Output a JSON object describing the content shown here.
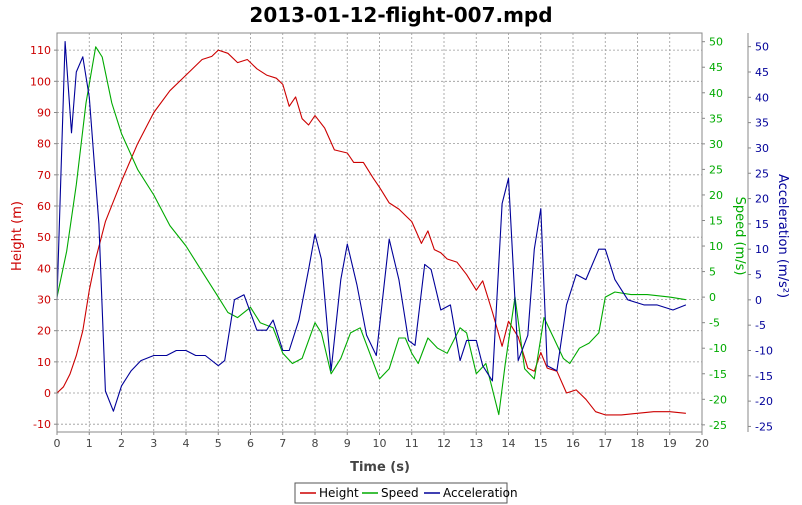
{
  "chart_data": {
    "type": "line",
    "title": "2013-01-12-flight-007.mpd",
    "xlabel": "Time (s)",
    "xlim": [
      0,
      20
    ],
    "xticks": [
      0,
      1,
      2,
      3,
      4,
      5,
      6,
      7,
      8,
      9,
      10,
      11,
      12,
      13,
      14,
      15,
      16,
      17,
      18,
      19,
      20
    ],
    "grid": true,
    "legend_position": "bottom-center",
    "axes": {
      "left": {
        "label": "Height (m)",
        "color": "#cc0000",
        "ylim": [
          -12.5,
          115.5
        ],
        "ticks": [
          -10,
          0,
          10,
          20,
          30,
          40,
          50,
          60,
          70,
          80,
          90,
          100,
          110
        ]
      },
      "right1": {
        "label": "Speed (m/s)",
        "color": "#00aa00",
        "ylim": [
          -26.4,
          51.7
        ],
        "ticks": [
          -25,
          -20,
          -15,
          -10,
          -5,
          0,
          5,
          10,
          15,
          20,
          25,
          30,
          35,
          40,
          45,
          50
        ]
      },
      "right2": {
        "label": "Acceleration (m/s²)",
        "color": "#000099",
        "ylim": [
          -26.1,
          52.7
        ],
        "ticks": [
          -25,
          -20,
          -15,
          -10,
          -5,
          0,
          5,
          10,
          15,
          20,
          25,
          30,
          35,
          40,
          45,
          50
        ]
      }
    },
    "series": [
      {
        "name": "Height",
        "axis": "left",
        "color": "#cc0000",
        "points": [
          [
            0,
            0
          ],
          [
            0.2,
            2
          ],
          [
            0.4,
            6
          ],
          [
            0.6,
            12
          ],
          [
            0.8,
            20
          ],
          [
            1.0,
            33
          ],
          [
            1.2,
            43
          ],
          [
            1.5,
            55
          ],
          [
            2.0,
            68
          ],
          [
            2.5,
            80
          ],
          [
            3.0,
            90
          ],
          [
            3.5,
            97
          ],
          [
            4.0,
            102
          ],
          [
            4.5,
            107
          ],
          [
            4.8,
            108
          ],
          [
            5.0,
            110
          ],
          [
            5.3,
            109
          ],
          [
            5.6,
            106
          ],
          [
            5.9,
            107
          ],
          [
            6.2,
            104
          ],
          [
            6.5,
            102
          ],
          [
            6.8,
            101
          ],
          [
            7.0,
            99
          ],
          [
            7.2,
            92
          ],
          [
            7.4,
            95
          ],
          [
            7.6,
            88
          ],
          [
            7.8,
            86
          ],
          [
            8.0,
            89
          ],
          [
            8.3,
            85
          ],
          [
            8.6,
            78
          ],
          [
            9.0,
            77
          ],
          [
            9.2,
            74
          ],
          [
            9.5,
            74
          ],
          [
            9.8,
            69
          ],
          [
            10.0,
            66
          ],
          [
            10.3,
            61
          ],
          [
            10.6,
            59
          ],
          [
            10.8,
            57
          ],
          [
            11.0,
            55
          ],
          [
            11.3,
            48
          ],
          [
            11.5,
            52
          ],
          [
            11.7,
            46
          ],
          [
            11.9,
            45
          ],
          [
            12.1,
            43
          ],
          [
            12.4,
            42
          ],
          [
            12.7,
            38
          ],
          [
            13.0,
            33
          ],
          [
            13.2,
            36
          ],
          [
            13.5,
            26
          ],
          [
            13.8,
            15
          ],
          [
            14.0,
            23
          ],
          [
            14.3,
            18
          ],
          [
            14.6,
            8
          ],
          [
            14.8,
            7
          ],
          [
            15.0,
            13
          ],
          [
            15.2,
            8
          ],
          [
            15.5,
            7
          ],
          [
            15.8,
            0
          ],
          [
            16.1,
            1
          ],
          [
            16.4,
            -2
          ],
          [
            16.7,
            -6
          ],
          [
            17.0,
            -7
          ],
          [
            17.5,
            -7
          ],
          [
            18.0,
            -6.5
          ],
          [
            18.5,
            -6
          ],
          [
            19.0,
            -6
          ],
          [
            19.5,
            -6.5
          ]
        ]
      },
      {
        "name": "Speed",
        "axis": "right1",
        "color": "#00aa00",
        "points": [
          [
            0,
            0
          ],
          [
            0.3,
            9
          ],
          [
            0.6,
            22
          ],
          [
            0.9,
            38
          ],
          [
            1.2,
            49
          ],
          [
            1.4,
            47
          ],
          [
            1.7,
            38
          ],
          [
            2.0,
            32
          ],
          [
            2.5,
            25
          ],
          [
            3.0,
            20
          ],
          [
            3.5,
            14
          ],
          [
            4.0,
            10
          ],
          [
            4.5,
            5
          ],
          [
            5.0,
            0
          ],
          [
            5.3,
            -3
          ],
          [
            5.6,
            -4
          ],
          [
            6.0,
            -2
          ],
          [
            6.3,
            -5
          ],
          [
            6.7,
            -6
          ],
          [
            7.0,
            -11
          ],
          [
            7.3,
            -13
          ],
          [
            7.6,
            -12
          ],
          [
            8.0,
            -5
          ],
          [
            8.2,
            -7
          ],
          [
            8.5,
            -15
          ],
          [
            8.8,
            -12
          ],
          [
            9.1,
            -7
          ],
          [
            9.4,
            -6
          ],
          [
            9.7,
            -11
          ],
          [
            10.0,
            -16
          ],
          [
            10.3,
            -14
          ],
          [
            10.6,
            -8
          ],
          [
            10.8,
            -8
          ],
          [
            11.0,
            -11
          ],
          [
            11.2,
            -13
          ],
          [
            11.5,
            -8
          ],
          [
            11.8,
            -10
          ],
          [
            12.1,
            -11
          ],
          [
            12.5,
            -6
          ],
          [
            12.7,
            -7
          ],
          [
            13.0,
            -15
          ],
          [
            13.3,
            -13
          ],
          [
            13.7,
            -23
          ],
          [
            13.9,
            -13
          ],
          [
            14.2,
            0
          ],
          [
            14.5,
            -14
          ],
          [
            14.8,
            -16
          ],
          [
            15.1,
            -4
          ],
          [
            15.4,
            -8
          ],
          [
            15.7,
            -12
          ],
          [
            15.9,
            -13
          ],
          [
            16.2,
            -10
          ],
          [
            16.5,
            -9
          ],
          [
            16.8,
            -7
          ],
          [
            17.0,
            0
          ],
          [
            17.3,
            1
          ],
          [
            17.8,
            0.5
          ],
          [
            18.3,
            0.5
          ],
          [
            19.0,
            0
          ],
          [
            19.5,
            -0.5
          ]
        ]
      },
      {
        "name": "Acceleration",
        "axis": "right2",
        "color": "#000099",
        "points": [
          [
            0,
            0
          ],
          [
            0.25,
            51
          ],
          [
            0.45,
            33
          ],
          [
            0.6,
            45
          ],
          [
            0.8,
            48
          ],
          [
            1.0,
            40
          ],
          [
            1.3,
            15
          ],
          [
            1.5,
            -18
          ],
          [
            1.75,
            -22
          ],
          [
            2.0,
            -17
          ],
          [
            2.3,
            -14
          ],
          [
            2.6,
            -12
          ],
          [
            3.0,
            -11
          ],
          [
            3.4,
            -11
          ],
          [
            3.7,
            -10
          ],
          [
            4.0,
            -10
          ],
          [
            4.3,
            -11
          ],
          [
            4.6,
            -11
          ],
          [
            5.0,
            -13
          ],
          [
            5.2,
            -12
          ],
          [
            5.5,
            0
          ],
          [
            5.8,
            1
          ],
          [
            6.2,
            -6
          ],
          [
            6.5,
            -6
          ],
          [
            6.7,
            -4
          ],
          [
            7.0,
            -10
          ],
          [
            7.2,
            -10
          ],
          [
            7.5,
            -4
          ],
          [
            7.8,
            6
          ],
          [
            8.0,
            13
          ],
          [
            8.2,
            8
          ],
          [
            8.5,
            -14
          ],
          [
            8.8,
            4
          ],
          [
            9.0,
            11
          ],
          [
            9.3,
            3
          ],
          [
            9.6,
            -7
          ],
          [
            9.9,
            -11
          ],
          [
            10.3,
            12
          ],
          [
            10.6,
            4
          ],
          [
            10.9,
            -8
          ],
          [
            11.1,
            -9
          ],
          [
            11.4,
            7
          ],
          [
            11.6,
            6
          ],
          [
            11.9,
            -2
          ],
          [
            12.2,
            -1
          ],
          [
            12.5,
            -12
          ],
          [
            12.7,
            -8
          ],
          [
            13.0,
            -8
          ],
          [
            13.2,
            -13
          ],
          [
            13.5,
            -16
          ],
          [
            13.8,
            19
          ],
          [
            14.0,
            24
          ],
          [
            14.3,
            -12
          ],
          [
            14.6,
            -7
          ],
          [
            14.8,
            10
          ],
          [
            15.0,
            18
          ],
          [
            15.2,
            -13
          ],
          [
            15.5,
            -14
          ],
          [
            15.8,
            -1
          ],
          [
            16.1,
            5
          ],
          [
            16.4,
            4
          ],
          [
            16.8,
            10
          ],
          [
            17.0,
            10
          ],
          [
            17.3,
            4
          ],
          [
            17.7,
            0
          ],
          [
            18.2,
            -1
          ],
          [
            18.6,
            -1
          ],
          [
            19.1,
            -2
          ],
          [
            19.5,
            -1
          ]
        ]
      }
    ]
  }
}
